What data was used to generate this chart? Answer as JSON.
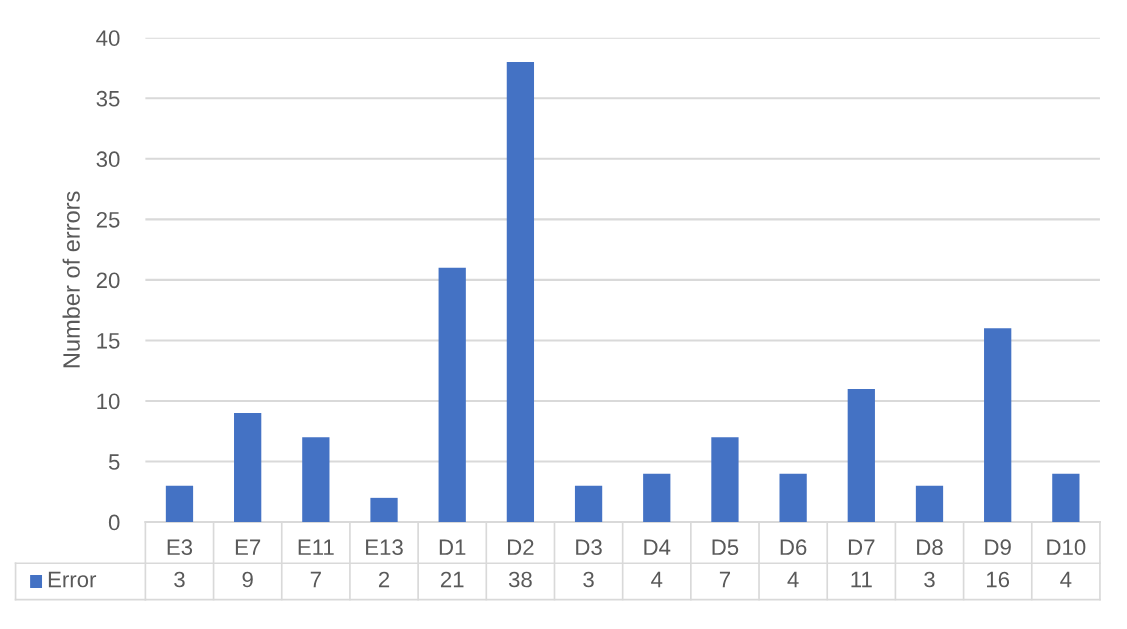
{
  "chart_data": {
    "type": "bar",
    "ylabel": "Number of errors",
    "categories": [
      "E3",
      "E7",
      "E11",
      "E13",
      "D1",
      "D2",
      "D3",
      "D4",
      "D5",
      "D6",
      "D7",
      "D8",
      "D9",
      "D10"
    ],
    "series": [
      {
        "name": "Error",
        "color": "#4472c4",
        "values": [
          3,
          9,
          7,
          2,
          21,
          38,
          3,
          4,
          7,
          4,
          11,
          3,
          16,
          4
        ]
      }
    ],
    "ylim": [
      0,
      40
    ],
    "yticks": [
      0,
      5,
      10,
      15,
      20,
      25,
      30,
      35,
      40
    ],
    "grid": "y",
    "legend": "bottom",
    "data_labels": true
  }
}
